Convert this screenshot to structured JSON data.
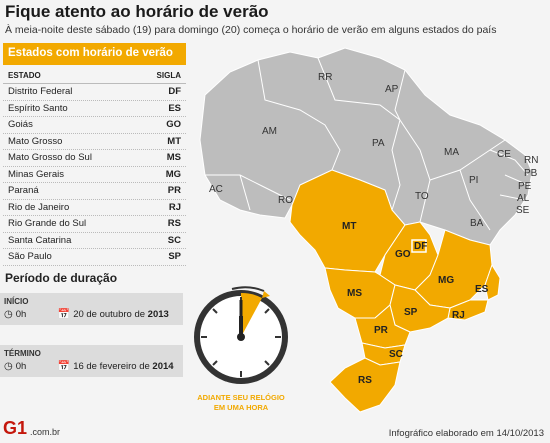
{
  "title": "Fique atento ao horário de verão",
  "subtitle": "À meia-noite deste sábado (19) para domingo (20) começa o horário de verão em alguns estados do país",
  "table": {
    "heading": "Estados com horário de verão",
    "col_state": "ESTADO",
    "col_abbr": "SIGLA",
    "rows": [
      {
        "state": "Distrito Federal",
        "abbr": "DF"
      },
      {
        "state": "Espírito Santo",
        "abbr": "ES"
      },
      {
        "state": "Goiás",
        "abbr": "GO"
      },
      {
        "state": "Mato Grosso",
        "abbr": "MT"
      },
      {
        "state": "Mato Grosso do Sul",
        "abbr": "MS"
      },
      {
        "state": "Minas Gerais",
        "abbr": "MG"
      },
      {
        "state": "Paraná",
        "abbr": "PR"
      },
      {
        "state": "Rio de Janeiro",
        "abbr": "RJ"
      },
      {
        "state": "Rio Grande do Sul",
        "abbr": "RS"
      },
      {
        "state": "Santa Catarina",
        "abbr": "SC"
      },
      {
        "state": "São Paulo",
        "abbr": "SP"
      }
    ]
  },
  "period": {
    "title": "Período de duração",
    "start_label": "INÍCIO",
    "start_time": "0h",
    "start_date_prefix": "20 de outubro de ",
    "start_year": "2013",
    "end_label": "TÉRMINO",
    "end_time": "0h",
    "end_date_prefix": "16 de fevereiro de ",
    "end_year": "2014"
  },
  "clock": {
    "line1": "ADIANTE SEU RELÓGIO",
    "line2": "EM UMA HORA"
  },
  "map_labels": {
    "RR": "RR",
    "AP": "AP",
    "AM": "AM",
    "PA": "PA",
    "MA": "MA",
    "CE": "CE",
    "RN": "RN",
    "PB": "PB",
    "PE": "PE",
    "AL": "AL",
    "SE": "SE",
    "PI": "PI",
    "BA": "BA",
    "TO": "TO",
    "AC": "AC",
    "RO": "RO",
    "MT": "MT",
    "GO": "GO",
    "DF": "DF",
    "MG": "MG",
    "ES": "ES",
    "MS": "MS",
    "SP": "SP",
    "RJ": "RJ",
    "PR": "PR",
    "SC": "SC",
    "RS": "RS"
  },
  "colors": {
    "dst": "#f2a900",
    "other": "#bdbdbd",
    "border": "#ffffff"
  },
  "footer": {
    "logo": "G1",
    "domain": ".com.br",
    "credit": "Infográfico elaborado em 14/10/2013"
  }
}
